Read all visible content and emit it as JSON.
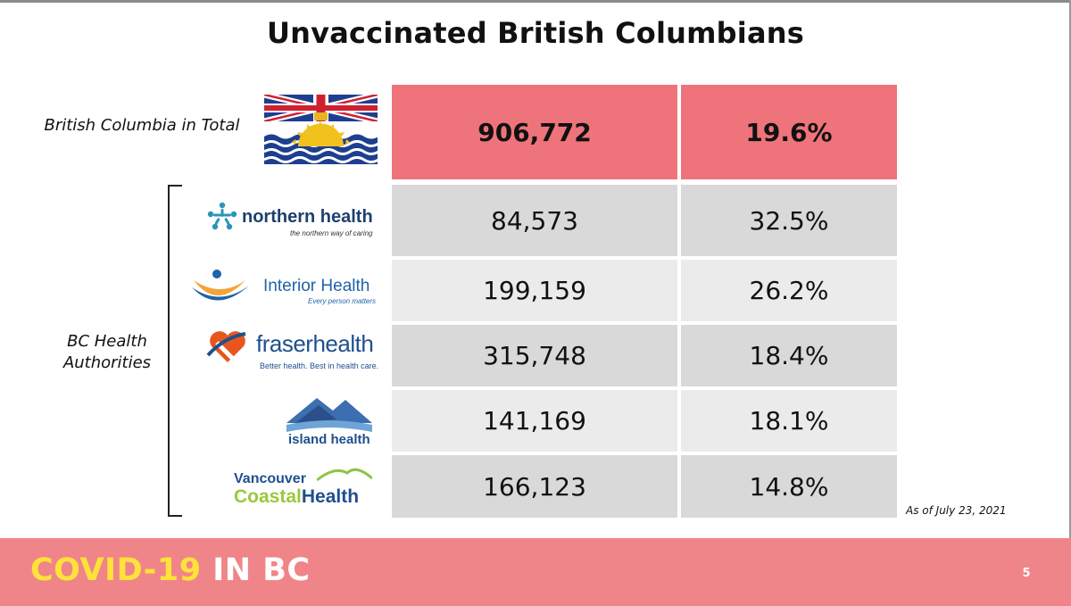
{
  "title": "Unvaccinated British Columbians",
  "bc_total": {
    "label": "British Columbia in Total",
    "count": "906,772",
    "percent": "19.6%"
  },
  "ha_label": {
    "line1": "BC Health",
    "line2": "Authorities"
  },
  "authorities": [
    {
      "logo_name": "northern-health-logo",
      "logo_text": "northern health",
      "logo_tagline": "the northern way of caring",
      "count": "84,573",
      "percent": "32.5%"
    },
    {
      "logo_name": "interior-health-logo",
      "logo_text": "Interior Health",
      "logo_tagline": "Every person matters",
      "count": "199,159",
      "percent": "26.2%"
    },
    {
      "logo_name": "fraser-health-logo",
      "logo_text": "fraserhealth",
      "logo_tagline": "Better health. Best in health care.",
      "count": "315,748",
      "percent": "18.4%"
    },
    {
      "logo_name": "island-health-logo",
      "logo_text": "island health",
      "logo_tagline": "",
      "count": "141,169",
      "percent": "18.1%"
    },
    {
      "logo_name": "vancouver-coastal-health-logo",
      "logo_text_line1": "Vancouver",
      "logo_text_line2a": "Coastal",
      "logo_text_line2b": "Health",
      "count": "166,123",
      "percent": "14.8%"
    }
  ],
  "as_of": "As of July 23, 2021",
  "footer": {
    "brand_part1": "COVID-19",
    "brand_part2": "IN BC",
    "page_number": "5"
  },
  "colors": {
    "highlight_row": "#ef737a",
    "row_dark": "#d9d9d9",
    "row_light": "#ebebeb",
    "footer_bg": "#f08589",
    "brand_yellow": "#ffe23a"
  }
}
